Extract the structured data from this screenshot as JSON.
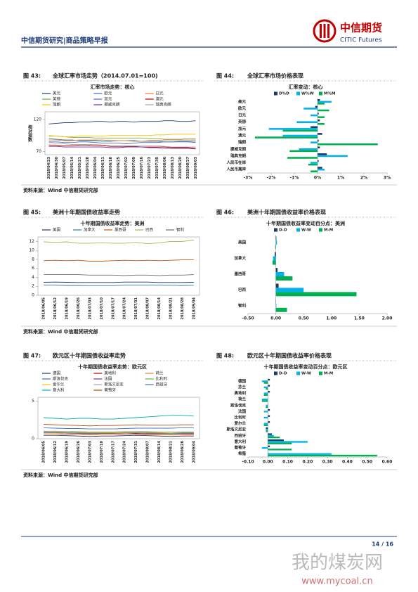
{
  "header": {
    "title": "中信期货研究|商品策略早报",
    "logo_cn": "中信期货",
    "logo_en": "CITIC Futures"
  },
  "figures": [
    {
      "number": "图 43:",
      "caption": "全球汇率市场走势（2014.07.01=100)"
    },
    {
      "number": "图 44:",
      "caption": "全球汇率市场价格表现"
    },
    {
      "number": "图 45:",
      "caption": "美洲十年期国债收益率走势"
    },
    {
      "number": "图 46:",
      "caption": "美洲十年期国债收益率价格表现"
    },
    {
      "number": "图 47:",
      "caption": "欧元区十年期国债收益率走势"
    },
    {
      "number": "图 48:",
      "caption": "欧元区十年期国债收益率价格表现"
    }
  ],
  "source": "资料来源：Wind  中信期货研究部",
  "page_number": "14 / 16",
  "watermark": {
    "name": "我的煤炭网",
    "url": "www.mycoal.cn"
  },
  "chart_data": [
    {
      "type": "line",
      "title": "汇率市场走势：核心",
      "y_label": "相对指数",
      "categories": [
        "2018/04/23",
        "2018/04/30",
        "2018/05/07",
        "2018/05/14",
        "2018/05/21",
        "2018/05/28",
        "2018/06/04",
        "2018/06/11",
        "2018/06/18",
        "2018/06/25",
        "2018/07/02",
        "2018/07/09",
        "2018/07/16",
        "2018/07/23",
        "2018/07/30",
        "2018/08/06",
        "2018/08/13",
        "2018/08/20",
        "2018/08/27",
        "2018/09/03"
      ],
      "ylim": [
        65,
        132
      ],
      "yticks": [
        70,
        120
      ],
      "series": [
        {
          "name": "美元",
          "color": "#1f3d7a",
          "values": [
            113,
            114,
            115,
            115,
            116,
            116,
            117,
            117,
            116,
            117,
            117,
            116,
            117,
            117,
            117,
            118,
            118,
            117,
            117,
            118
          ]
        },
        {
          "name": "欧元",
          "color": "#2e75b6",
          "values": [
            90,
            89,
            88,
            88,
            87,
            87,
            87,
            86,
            86,
            87,
            87,
            87,
            86,
            86,
            86,
            85,
            85,
            86,
            86,
            86
          ]
        },
        {
          "name": "日元",
          "color": "#ed7d31",
          "values": [
            88,
            88,
            87,
            87,
            88,
            88,
            88,
            88,
            87,
            87,
            87,
            86,
            86,
            87,
            87,
            88,
            88,
            88,
            88,
            88
          ]
        },
        {
          "name": "英镑",
          "color": "#70ad47",
          "values": [
            94,
            94,
            93,
            92,
            92,
            92,
            91,
            91,
            91,
            91,
            91,
            91,
            91,
            90,
            90,
            89,
            89,
            89,
            90,
            90
          ]
        },
        {
          "name": "加元",
          "color": "#4472c4",
          "values": [
            85,
            85,
            84,
            84,
            85,
            85,
            84,
            83,
            83,
            83,
            82,
            83,
            84,
            84,
            84,
            85,
            85,
            85,
            85,
            84
          ]
        },
        {
          "name": "澳元",
          "color": "#c00000",
          "values": [
            80,
            80,
            79,
            79,
            80,
            80,
            79,
            79,
            78,
            78,
            78,
            78,
            77,
            77,
            77,
            77,
            76,
            76,
            76,
            75
          ]
        },
        {
          "name": "瑞朗",
          "color": "#ffc000",
          "values": [
            95,
            94,
            93,
            93,
            94,
            94,
            94,
            94,
            95,
            95,
            95,
            95,
            95,
            95,
            96,
            96,
            97,
            97,
            97,
            97
          ]
        },
        {
          "name": "挪威克朗",
          "color": "#7030a0",
          "values": [
            78,
            78,
            77,
            77,
            77,
            77,
            77,
            77,
            76,
            76,
            77,
            77,
            77,
            76,
            76,
            75,
            75,
            75,
            75,
            74
          ]
        },
        {
          "name": "瑞典克朗",
          "color": "#a5a5a5",
          "values": [
            84,
            83,
            82,
            81,
            81,
            81,
            81,
            80,
            79,
            79,
            79,
            79,
            79,
            79,
            79,
            78,
            77,
            77,
            77,
            77
          ]
        }
      ]
    },
    {
      "type": "hbar",
      "title": "汇率变动：核心",
      "categories": [
        "美元",
        "欧元",
        "日元",
        "英镑",
        "加元",
        "澳元",
        "瑞朗",
        "挪威克朗",
        "瑞典克朗",
        "人民币在岸",
        "人民币离岸"
      ],
      "xlim": [
        -3,
        3
      ],
      "xticks": [
        {
          "value": -3,
          "label": "-3%"
        },
        {
          "value": -2,
          "label": "-2%"
        },
        {
          "value": -1,
          "label": "-1%"
        },
        {
          "value": 0,
          "label": "0%"
        },
        {
          "value": 1,
          "label": "1%"
        },
        {
          "value": 2,
          "label": "2%"
        },
        {
          "value": 3,
          "label": "3%"
        }
      ],
      "series": [
        {
          "name": "D%D",
          "color": "#1f3864",
          "values": [
            0.1,
            -0.1,
            0.05,
            0.1,
            -0.3,
            0.2,
            0.05,
            0.1,
            0.4,
            0.05,
            0.2
          ]
        },
        {
          "name": "W%W",
          "color": "#00b0f0",
          "values": [
            0.6,
            -0.6,
            -0.3,
            -0.9,
            -2.1,
            -1.5,
            -0.3,
            -0.8,
            1.3,
            -0.3,
            0.3
          ]
        },
        {
          "name": "M%M",
          "color": "#00b050",
          "values": [
            0.3,
            0.5,
            0.3,
            0.3,
            -1.5,
            -2.7,
            2.6,
            -1.2,
            -1.3,
            -0.4,
            -0.3
          ]
        }
      ]
    },
    {
      "type": "line",
      "title": "十年期国债收益率走势：美洲",
      "categories": [
        "2018/06/05",
        "2018/06/12",
        "2018/06/19",
        "2018/06/26",
        "2018/07/03",
        "2018/07/10",
        "2018/07/17",
        "2018/07/24",
        "2018/07/31",
        "2018/08/07",
        "2018/08/14",
        "2018/08/21",
        "2018/08/28",
        "2018/09/04"
      ],
      "ylim": [
        0,
        13
      ],
      "yticks": [
        0,
        2,
        4,
        6,
        8,
        10,
        12
      ],
      "series": [
        {
          "name": "美国",
          "color": "#1f3864",
          "values": [
            2.9,
            2.95,
            2.9,
            2.85,
            2.85,
            2.85,
            2.85,
            2.95,
            2.95,
            2.95,
            2.85,
            2.85,
            2.85,
            2.9
          ]
        },
        {
          "name": "加拿大",
          "color": "#2e75b6",
          "values": [
            2.3,
            2.3,
            2.2,
            2.2,
            2.15,
            2.15,
            2.15,
            2.3,
            2.3,
            2.3,
            2.3,
            2.25,
            2.2,
            2.25
          ]
        },
        {
          "name": "墨西哥",
          "color": "#c55a11",
          "values": [
            7.7,
            7.8,
            7.7,
            7.8,
            7.6,
            7.6,
            7.7,
            7.8,
            7.7,
            7.8,
            7.7,
            7.8,
            7.9,
            7.9
          ]
        },
        {
          "name": "巴西",
          "color": "#9bbb59",
          "values": [
            11.9,
            11.8,
            11.9,
            11.6,
            11.6,
            11.7,
            11.6,
            11.6,
            11.8,
            11.5,
            11.7,
            12.0,
            12.0,
            12.3
          ]
        },
        {
          "name": "智利",
          "color": "#7f6084",
          "values": [
            4.6,
            4.6,
            4.6,
            4.6,
            4.5,
            4.5,
            4.5,
            4.4,
            4.5,
            4.5,
            4.4,
            4.5,
            4.5,
            4.6
          ]
        }
      ]
    },
    {
      "type": "hbar",
      "title": "十年期国债收益率变动百分点：美洲",
      "categories": [
        "美国",
        "加拿大",
        "墨西哥",
        "巴西",
        "智利"
      ],
      "xlim": [
        -0.5,
        2
      ],
      "xticks": [
        {
          "value": -0.5,
          "label": "-0.50"
        },
        {
          "value": 0,
          "label": "0.00"
        },
        {
          "value": 0.5,
          "label": "0.50"
        },
        {
          "value": 1,
          "label": "1.00"
        },
        {
          "value": 1.5,
          "label": "1.50"
        },
        {
          "value": 2,
          "label": "2.00"
        }
      ],
      "series": [
        {
          "name": "D-D",
          "color": "#1f3864",
          "values": [
            0.01,
            -0.02,
            0.03,
            0.05,
            0.0
          ]
        },
        {
          "name": "W-W",
          "color": "#00b0f0",
          "values": [
            0.02,
            -0.05,
            0.15,
            0.5,
            0.01
          ]
        },
        {
          "name": "M-M",
          "color": "#00b050",
          "values": [
            -0.01,
            -0.06,
            0.3,
            1.45,
            0.2
          ]
        }
      ]
    },
    {
      "type": "line",
      "title": "十年期国债收益率走势：欧元区",
      "categories": [
        "2018/06/05",
        "2018/06/12",
        "2018/06/19",
        "2018/06/26",
        "2018/07/03",
        "2018/07/10",
        "2018/07/17",
        "2018/07/24",
        "2018/07/31",
        "2018/08/07",
        "2018/08/14",
        "2018/08/21",
        "2018/08/28",
        "2018/09/04"
      ],
      "ylim": [
        0,
        5.5
      ],
      "yticks": [
        0,
        5
      ],
      "series": [
        {
          "name": "德国",
          "color": "#1f3864",
          "values": [
            0.45,
            0.45,
            0.4,
            0.35,
            0.3,
            0.35,
            0.35,
            0.4,
            0.45,
            0.4,
            0.35,
            0.3,
            0.35,
            0.35
          ]
        },
        {
          "name": "奥地利",
          "color": "#c00000",
          "values": [
            0.65,
            0.65,
            0.6,
            0.55,
            0.5,
            0.55,
            0.55,
            0.6,
            0.65,
            0.6,
            0.55,
            0.5,
            0.55,
            0.55
          ]
        },
        {
          "name": "荷兰",
          "color": "#ed7d31",
          "values": [
            0.65,
            0.65,
            0.6,
            0.55,
            0.5,
            0.55,
            0.55,
            0.6,
            0.6,
            0.55,
            0.5,
            0.5,
            0.5,
            0.5
          ]
        },
        {
          "name": "斯洛伐克",
          "color": "#2e75b6",
          "values": [
            0.95,
            0.95,
            0.9,
            0.85,
            0.85,
            0.85,
            0.85,
            0.9,
            0.9,
            0.85,
            0.85,
            0.85,
            0.85,
            0.85
          ]
        },
        {
          "name": "法国",
          "color": "#7030a0",
          "values": [
            0.8,
            0.8,
            0.75,
            0.7,
            0.65,
            0.7,
            0.7,
            0.75,
            0.75,
            0.7,
            0.7,
            0.65,
            0.7,
            0.7
          ]
        },
        {
          "name": "比利时",
          "color": "#70ad47",
          "values": [
            0.85,
            0.85,
            0.8,
            0.75,
            0.75,
            0.75,
            0.75,
            0.8,
            0.8,
            0.75,
            0.75,
            0.7,
            0.75,
            0.75
          ]
        },
        {
          "name": "爱尔兰",
          "color": "#ffc000",
          "values": [
            1.0,
            0.95,
            0.95,
            0.9,
            0.85,
            0.85,
            0.85,
            0.9,
            0.95,
            0.9,
            0.85,
            0.85,
            0.9,
            0.9
          ]
        },
        {
          "name": "斯洛文尼亚",
          "color": "#a5a5a5",
          "values": [
            1.0,
            1.0,
            0.95,
            0.95,
            0.9,
            0.9,
            0.9,
            0.95,
            0.95,
            0.95,
            0.9,
            0.9,
            0.9,
            0.9
          ]
        },
        {
          "name": "西班牙",
          "color": "#4472c4",
          "values": [
            1.45,
            1.4,
            1.35,
            1.35,
            1.3,
            1.3,
            1.3,
            1.35,
            1.4,
            1.4,
            1.4,
            1.4,
            1.45,
            1.45
          ]
        },
        {
          "name": "意大利",
          "color": "#00b0a0",
          "values": [
            2.8,
            2.7,
            2.6,
            2.7,
            2.7,
            2.6,
            2.6,
            2.7,
            2.8,
            2.9,
            3.0,
            3.1,
            3.1,
            3.0
          ]
        },
        {
          "name": "葡萄牙",
          "color": "#9e480e",
          "values": [
            1.9,
            1.85,
            1.8,
            1.75,
            1.7,
            1.75,
            1.75,
            1.8,
            1.85,
            1.8,
            1.8,
            1.8,
            1.85,
            1.85
          ]
        }
      ]
    },
    {
      "type": "hbar",
      "title": "十年期国债收益率变动百分点：欧元区",
      "categories": [
        "德国",
        "芬兰",
        "奥地利",
        "荷兰",
        "斯洛伐克",
        "法国",
        "比利时",
        "爱尔兰",
        "斯洛文尼亚",
        "西班牙",
        "意大利",
        "葡萄牙",
        "希腊"
      ],
      "xlim": [
        -0.1,
        0.6
      ],
      "xticks": [
        {
          "value": -0.1,
          "label": "-0.10"
        },
        {
          "value": 0,
          "label": "0.00"
        },
        {
          "value": 0.1,
          "label": "0.10"
        },
        {
          "value": 0.2,
          "label": "0.20"
        },
        {
          "value": 0.3,
          "label": "0.30"
        },
        {
          "value": 0.4,
          "label": "0.40"
        },
        {
          "value": 0.5,
          "label": "0.50"
        },
        {
          "value": 0.6,
          "label": "0.60"
        }
      ],
      "series": [
        {
          "name": "D-D",
          "color": "#1f3864",
          "values": [
            0.01,
            0.01,
            0.01,
            0.0,
            0.0,
            0.01,
            0.01,
            0.01,
            -0.01,
            0.02,
            0.08,
            0.01,
            0.0
          ]
        },
        {
          "name": "W-W",
          "color": "#00b0f0",
          "values": [
            -0.03,
            -0.02,
            -0.02,
            -0.03,
            -0.01,
            -0.02,
            -0.02,
            -0.02,
            -0.01,
            0.03,
            0.2,
            -0.03,
            0.32
          ]
        },
        {
          "name": "M-M",
          "color": "#00b050",
          "values": [
            -0.02,
            -0.01,
            -0.02,
            -0.03,
            -0.01,
            0.0,
            0.0,
            -0.02,
            -0.01,
            0.06,
            0.12,
            0.12,
            0.55
          ]
        }
      ]
    }
  ]
}
